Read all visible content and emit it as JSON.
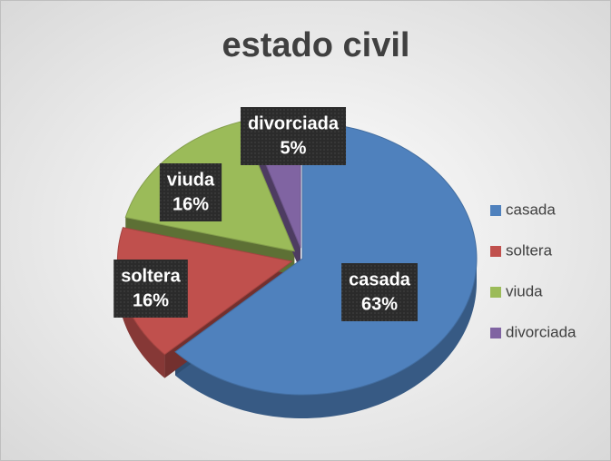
{
  "chart_data": {
    "type": "pie",
    "title": "estado civil",
    "categories": [
      "casada",
      "soltera",
      "viuda",
      "divorciada"
    ],
    "values": [
      63,
      16,
      16,
      5
    ],
    "value_labels": [
      "63%",
      "16%",
      "16%",
      "5%"
    ],
    "colors": [
      "#4f81bd",
      "#c0504d",
      "#9bbb59",
      "#8064a2"
    ],
    "legend": "right"
  }
}
